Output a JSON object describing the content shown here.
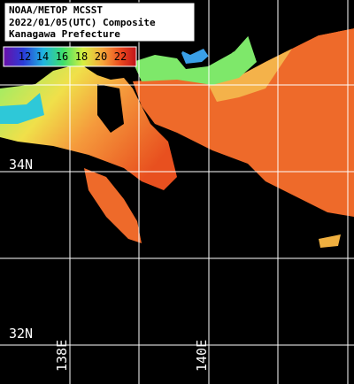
{
  "header": {
    "lines": [
      "NOAA/METOP MCSST",
      "2022/01/05(UTC) Composite",
      "Kanagawa Prefecture"
    ]
  },
  "colorbar": {
    "labels": [
      "12",
      "14",
      "16",
      "18",
      "20",
      "22"
    ]
  },
  "grid_labels": {
    "latitudes": [
      "34N",
      "32N"
    ],
    "longitudes": [
      "138E",
      "140E"
    ]
  }
}
